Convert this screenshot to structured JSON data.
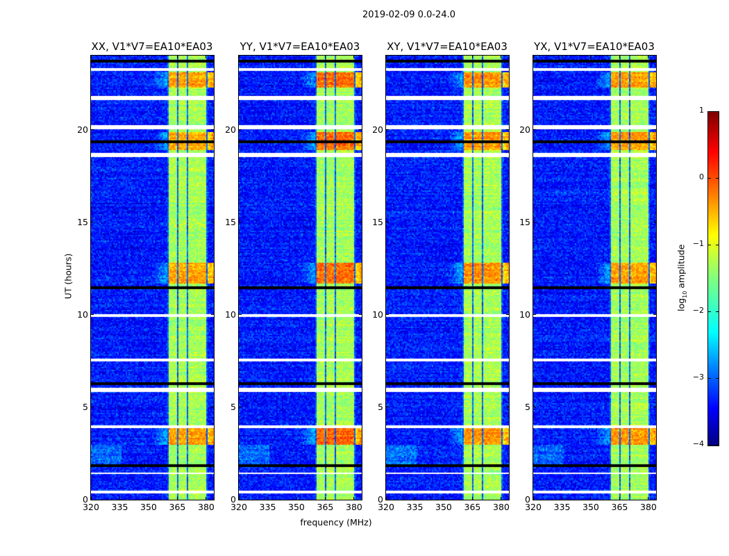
{
  "figure_title": "2019-02-09 0.0-24.0",
  "chart_data": {
    "type": "heatmap",
    "title": "2019-02-09 0.0-24.0",
    "xlabel": "frequency (MHz)",
    "ylabel": "UT (hours)",
    "xlim": [
      320,
      384
    ],
    "ylim": [
      0,
      24
    ],
    "xticks": [
      "320",
      "335",
      "350",
      "365",
      "380"
    ],
    "xtick_values": [
      320,
      335,
      350,
      365,
      380
    ],
    "yticks": [
      "0",
      "5",
      "10",
      "15",
      "20"
    ],
    "ytick_values": [
      0,
      5,
      10,
      15,
      20
    ],
    "panels": [
      {
        "title": "XX, V1*V7=EA10*EA03",
        "hot_boost": 0.9
      },
      {
        "title": "YY, V1*V7=EA10*EA03",
        "hot_boost": 1.2
      },
      {
        "title": "XY, V1*V7=EA10*EA03",
        "hot_boost": 1.0
      },
      {
        "title": "YX, V1*V7=EA10*EA03",
        "hot_boost": 0.95
      }
    ],
    "bright_subbands_mhz": [
      [
        360.5,
        365
      ],
      [
        365.3,
        370
      ],
      [
        370.3,
        375
      ],
      [
        375.3,
        379.8
      ]
    ],
    "high_amplitude_periods_hours": [
      [
        11.7,
        12.8
      ],
      [
        22.3,
        23.1
      ],
      [
        18.9,
        19.9
      ],
      [
        3.0,
        4.0
      ]
    ],
    "flagged_periods_hours": [
      [
        23.15,
        23.35
      ],
      [
        21.6,
        21.8
      ],
      [
        20.0,
        20.25
      ],
      [
        18.55,
        18.75
      ],
      [
        9.85,
        10.05
      ],
      [
        7.45,
        7.65
      ],
      [
        5.85,
        6.05
      ],
      [
        3.85,
        4.0
      ],
      [
        1.4,
        1.5
      ],
      [
        0.35,
        0.48
      ]
    ],
    "low_periods_hours": [
      [
        23.65,
        23.8
      ],
      [
        19.25,
        19.4
      ],
      [
        11.4,
        11.55
      ],
      [
        6.2,
        6.35
      ],
      [
        1.75,
        1.9
      ]
    ],
    "colorbar": {
      "label": "log10 amplitude",
      "label_main": "log",
      "label_sub": "10",
      "label_rest": " amplitude",
      "colormap": "jet",
      "range": [
        -4,
        1
      ],
      "ticks": [
        "1",
        "0",
        "−1",
        "−2",
        "−3",
        "−4"
      ],
      "tick_values": [
        1,
        0,
        -1,
        -2,
        -3,
        -4
      ]
    }
  }
}
